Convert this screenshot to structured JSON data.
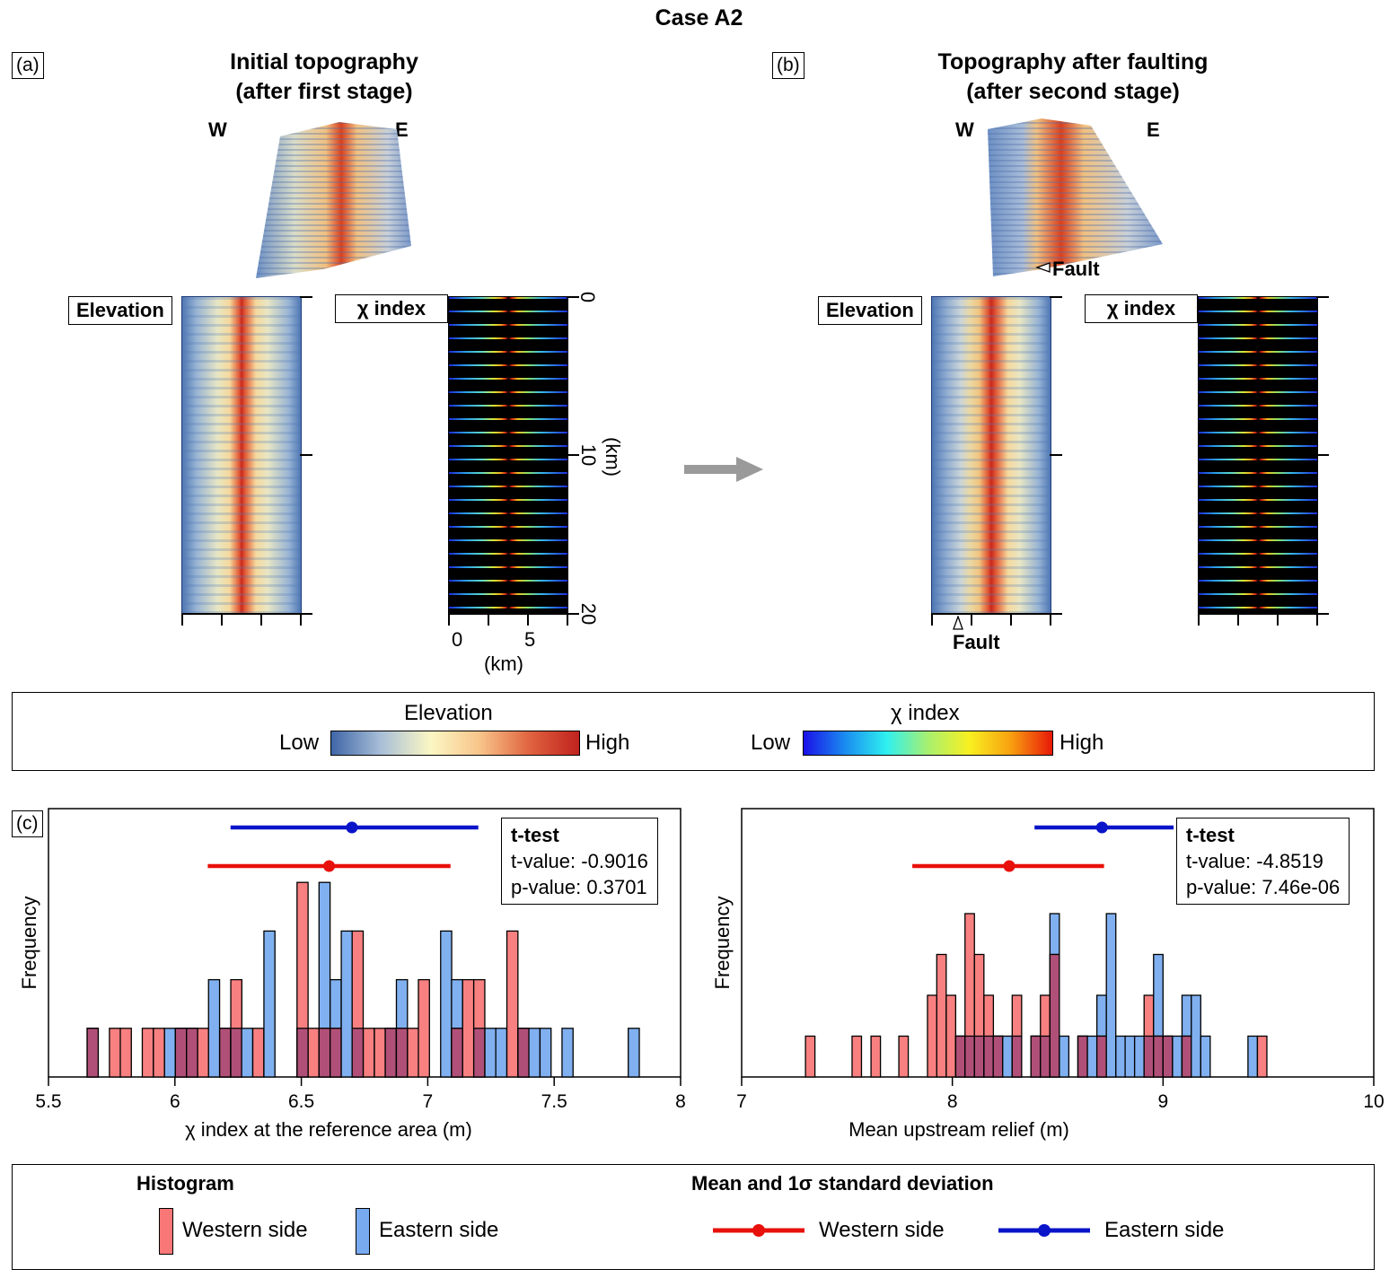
{
  "figure_title": "Case A2",
  "panel_a": {
    "label": "(a)",
    "title_line1": "Initial topography",
    "title_line2": "(after first stage)",
    "west": "W",
    "east": "E",
    "elevation_label": "Elevation",
    "chi_label": "χ index",
    "y_ticks": [
      "0",
      "10",
      "20"
    ],
    "y_unit": "(km)",
    "x_ticks": [
      "0",
      "5"
    ],
    "x_unit": "(km)"
  },
  "panel_b": {
    "label": "(b)",
    "title_line1": "Topography after faulting",
    "title_line2": "(after second stage)",
    "west": "W",
    "east": "E",
    "fault_label_3d": "Fault",
    "fault_label_map": "Fault",
    "elevation_label": "Elevation",
    "chi_label": "χ index"
  },
  "colorbars": {
    "elevation": {
      "title": "Elevation",
      "low": "Low",
      "high": "High",
      "colors": [
        "#3f66a8",
        "#a9bfd8",
        "#fbf7c4",
        "#f8c489",
        "#e0633f",
        "#c0221e"
      ]
    },
    "chi": {
      "title": "χ index",
      "low": "Low",
      "high": "High",
      "colors": [
        "#1a10e8",
        "#1a8cf0",
        "#2ff0f0",
        "#a8f070",
        "#f8f020",
        "#f8a010",
        "#e81808"
      ]
    }
  },
  "panel_c": {
    "label": "(c)"
  },
  "chart_data": [
    {
      "type": "bar",
      "subtype": "overlaid-histogram",
      "xlabel": "χ index at the reference area (m)",
      "ylabel": "Frequency",
      "xlim": [
        5.5,
        8
      ],
      "ylim": [
        0,
        4.35
      ],
      "x_ticks": [
        "5.5",
        "6",
        "6.5",
        "7",
        "7.5",
        "8"
      ],
      "x_tick_values": [
        5.5,
        6,
        6.5,
        7,
        7.5,
        8
      ],
      "bin_width": 0.0437,
      "series": [
        {
          "name": "Western side",
          "color": "#f87878",
          "bins": [
            [
              5.653,
              1
            ],
            [
              5.741,
              1
            ],
            [
              5.784,
              1
            ],
            [
              5.871,
              1
            ],
            [
              5.915,
              1
            ],
            [
              6.002,
              1
            ],
            [
              6.046,
              1
            ],
            [
              6.09,
              1
            ],
            [
              6.177,
              1
            ],
            [
              6.221,
              2
            ],
            [
              6.308,
              1
            ],
            [
              6.483,
              4
            ],
            [
              6.527,
              1
            ],
            [
              6.57,
              1
            ],
            [
              6.614,
              1
            ],
            [
              6.701,
              3
            ],
            [
              6.745,
              1
            ],
            [
              6.789,
              1
            ],
            [
              6.832,
              1
            ],
            [
              6.876,
              1
            ],
            [
              6.92,
              1
            ],
            [
              6.963,
              2
            ],
            [
              7.094,
              1
            ],
            [
              7.138,
              2
            ],
            [
              7.182,
              2
            ],
            [
              7.313,
              3
            ],
            [
              7.357,
              1
            ]
          ]
        },
        {
          "name": "Eastern side",
          "color": "#78aaf0",
          "bins": [
            [
              5.653,
              1
            ],
            [
              5.959,
              1
            ],
            [
              6.002,
              1
            ],
            [
              6.046,
              1
            ],
            [
              6.133,
              2
            ],
            [
              6.177,
              1
            ],
            [
              6.221,
              1
            ],
            [
              6.264,
              1
            ],
            [
              6.352,
              3
            ],
            [
              6.483,
              1
            ],
            [
              6.57,
              4
            ],
            [
              6.614,
              2
            ],
            [
              6.658,
              3
            ],
            [
              6.701,
              1
            ],
            [
              6.832,
              1
            ],
            [
              6.876,
              2
            ],
            [
              7.051,
              3
            ],
            [
              7.094,
              2
            ],
            [
              7.182,
              1
            ],
            [
              7.226,
              1
            ],
            [
              7.269,
              1
            ],
            [
              7.357,
              1
            ],
            [
              7.4,
              1
            ],
            [
              7.444,
              1
            ],
            [
              7.531,
              1
            ],
            [
              7.793,
              1
            ]
          ]
        }
      ],
      "mean_sd": [
        {
          "name": "Western side",
          "mean": 6.61,
          "low": 6.13,
          "high": 7.09,
          "color": "#e8100a"
        },
        {
          "name": "Eastern side",
          "mean": 6.7,
          "low": 6.22,
          "high": 7.2,
          "color": "#0a14c8"
        }
      ],
      "ttest": {
        "title": "t-test",
        "t_value": "t-value: -0.9016",
        "p_value": "p-value: 0.3701"
      }
    },
    {
      "type": "bar",
      "subtype": "overlaid-histogram",
      "xlabel": "Mean upstream relief (m)",
      "ylabel": "Frequency",
      "xlim": [
        7,
        10
      ],
      "ylim": [
        0,
        5.8
      ],
      "x_ticks": [
        "7",
        "8",
        "9",
        "10"
      ],
      "x_tick_values": [
        7,
        8,
        9,
        10
      ],
      "bin_width": 0.0448,
      "series": [
        {
          "name": "Western side",
          "color": "#f87878",
          "bins": [
            [
              7.303,
              1
            ],
            [
              7.524,
              1
            ],
            [
              7.614,
              1
            ],
            [
              7.746,
              1
            ],
            [
              7.882,
              2
            ],
            [
              7.926,
              3
            ],
            [
              7.971,
              2
            ],
            [
              8.016,
              1
            ],
            [
              8.06,
              4
            ],
            [
              8.105,
              3
            ],
            [
              8.15,
              2
            ],
            [
              8.194,
              1
            ],
            [
              8.284,
              2
            ],
            [
              8.373,
              1
            ],
            [
              8.418,
              2
            ],
            [
              8.463,
              3
            ],
            [
              8.596,
              1
            ],
            [
              8.686,
              1
            ],
            [
              8.91,
              2
            ],
            [
              8.955,
              1
            ],
            [
              9.0,
              1
            ],
            [
              9.09,
              1
            ],
            [
              9.179,
              0
            ],
            [
              9.4,
              0
            ],
            [
              9.448,
              1
            ]
          ]
        },
        {
          "name": "Eastern side",
          "color": "#78aaf0",
          "bins": [
            [
              8.016,
              1
            ],
            [
              8.06,
              1
            ],
            [
              8.105,
              1
            ],
            [
              8.15,
              1
            ],
            [
              8.194,
              1
            ],
            [
              8.239,
              1
            ],
            [
              8.284,
              1
            ],
            [
              8.373,
              1
            ],
            [
              8.418,
              1
            ],
            [
              8.463,
              4
            ],
            [
              8.508,
              1
            ],
            [
              8.596,
              1
            ],
            [
              8.641,
              1
            ],
            [
              8.686,
              2
            ],
            [
              8.731,
              4
            ],
            [
              8.776,
              1
            ],
            [
              8.82,
              1
            ],
            [
              8.865,
              1
            ],
            [
              8.91,
              1
            ],
            [
              8.955,
              3
            ],
            [
              9.0,
              1
            ],
            [
              9.045,
              1
            ],
            [
              9.09,
              2
            ],
            [
              9.134,
              2
            ],
            [
              9.179,
              1
            ],
            [
              9.403,
              1
            ]
          ]
        }
      ],
      "mean_sd": [
        {
          "name": "Western side",
          "mean": 8.27,
          "low": 7.81,
          "high": 8.72,
          "color": "#e8100a"
        },
        {
          "name": "Eastern side",
          "mean": 8.71,
          "low": 8.39,
          "high": 9.05,
          "color": "#0a14c8"
        }
      ],
      "ttest": {
        "title": "t-test",
        "t_value": "t-value: -4.8519",
        "p_value": "p-value: 7.46e-06"
      }
    }
  ],
  "bottom_legend": {
    "histogram_title": "Histogram",
    "mean_title": "Mean and 1σ standard deviation",
    "hist_west": "Western side",
    "hist_east": "Eastern side",
    "mean_west": "Western side",
    "mean_east": "Eastern side",
    "west_fill": "#f87878",
    "east_fill": "#78aaf0",
    "west_line": "#e8100a",
    "east_line": "#0a14c8"
  }
}
